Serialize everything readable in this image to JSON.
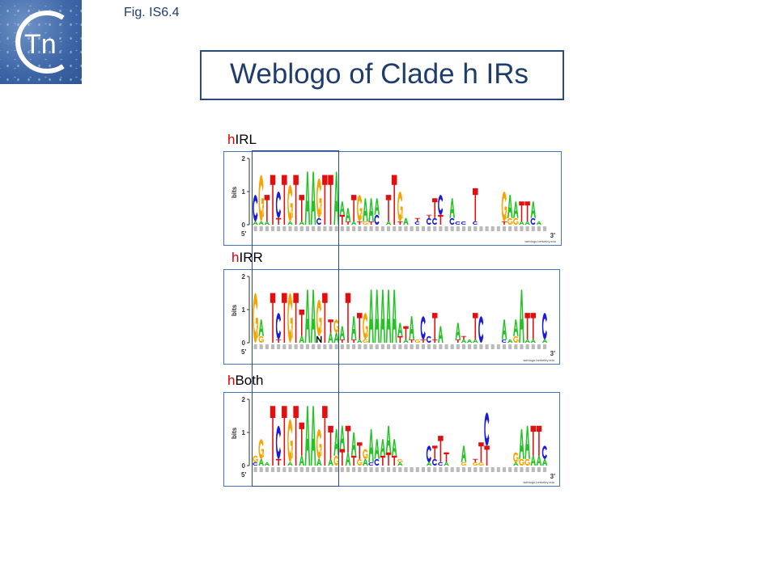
{
  "header": {
    "figure_label": "Fig. IS6.4",
    "title": "Weblogo of Clade h IRs",
    "logo_text": "Tn"
  },
  "colors": {
    "A": "#22c322",
    "C": "#1b1bd6",
    "G": "#f6a400",
    "T": "#e01010",
    "N": "#111111",
    "accent": "#e00000",
    "title": "#1f3d6b"
  },
  "axis": {
    "ylabel": "bits",
    "ticks": [
      "0",
      "1",
      "2"
    ],
    "five_prime": "5'",
    "three_prime": "3'",
    "credit": "weblogo.berkeley.edu",
    "ylim": [
      0,
      2
    ]
  },
  "logos": [
    {
      "prefix": "h",
      "name": "IRL",
      "columns": [
        "C0.8 A0.1",
        "G1.4 A0.1",
        "T0.8 A0.1",
        "T1.5",
        "C0.8 T0.2",
        "T1.5",
        "G1.1 A0.1",
        "T1.5",
        "T0.8 A0.1",
        "A1.6",
        "A1.6",
        "G1.2 C0.2",
        "T1.5",
        "T1.5",
        "A1.6",
        "A0.4 T0.3",
        "A0.4 T0.1",
        "T0.8 A0.1",
        "G0.8 T0.1",
        "A0.7 G0.1",
        "A0.7 T0.1",
        "A0.5 C0.3",
        "",
        "T0.8 A0.1",
        "T1.5",
        "G0.9 T0.1",
        "A0.2",
        "",
        "T0.1 C0.1",
        "",
        "T0.1 C0.2",
        "T0.6 C0.2",
        "C0.6 T0.3",
        "",
        "A0.6 C0.2",
        "C0.1",
        "C0.1",
        "",
        "T1.0 C0.1",
        "",
        "",
        "",
        "",
        "G0.9 T0.1",
        "A0.7 G0.2",
        "A0.5 G0.2",
        "T0.6 A0.1",
        "T0.6 A0.1",
        "A0.5 C0.2",
        "A0.1",
        ""
      ]
    },
    {
      "prefix": "h",
      "name": "IRR",
      "columns": [
        "G1.5",
        "A0.5 G0.2",
        "",
        "T1.5",
        "C0.8 T0.1",
        "T1.5",
        "G1.5",
        "T1.5",
        "T0.8 A0.2",
        "A1.6",
        "A1.6",
        "G1.1 N0.2",
        "T1.5",
        "T0.4 A0.3",
        "G0.4 A0.3",
        "A0.4 T0.1",
        "T1.5",
        "A0.7 T0.1",
        "T0.8 A0.1",
        "G0.8 G0.1",
        "A1.6",
        "A1.6",
        "A1.6",
        "A1.6",
        "A1.6",
        "A0.4 T0.2",
        "T0.4 A0.1",
        "A0.7 T0.1",
        "G0.1",
        "C0.7 T0.1",
        "C0.2",
        "T0.8 T0.1",
        "A0.5",
        "",
        "",
        "A0.5 T0.1",
        "T0.1 A0.1",
        "A0.1",
        "T0.8 A0.1",
        "C0.8",
        "",
        "",
        "",
        "A0.6 C0.1",
        "A0.1",
        "A0.5 G0.2",
        "A1.6",
        "T0.8 A0.1",
        "T0.8 A0.1",
        "",
        "C0.8 A0.1"
      ]
    },
    {
      "prefix": "h",
      "name": "Both",
      "columns": [
        "G0.2 C0.1",
        "G0.6 A0.2",
        "A0.1",
        "T1.8",
        "C1.0 T0.2",
        "T1.8",
        "G1.3 A0.1",
        "T1.8",
        "T1.0 A0.3",
        "A1.8",
        "A1.8",
        "G0.9 A0.2",
        "T1.8",
        "T1.0 A0.2",
        "A0.8 G0.3",
        "A0.7 T0.5",
        "T0.8 A0.4",
        "A0.7 T0.3",
        "T0.5 G0.2",
        "G0.3 A0.2",
        "A1.0 C0.1",
        "A0.6 C0.2",
        "A0.5 T0.3",
        "A0.8 T0.4",
        "A0.5 T0.3",
        "G0.1 A0.1",
        "",
        "",
        "",
        "",
        "C0.5 A0.1",
        "T0.4 C0.2",
        "T0.8 C0.1",
        "T0.3 A0.1",
        "",
        "",
        "A0.5 G0.1",
        "",
        "T0.1 G0.1",
        "T0.6 G0.1",
        "C1.0 T0.6",
        "",
        "",
        "",
        "",
        "G0.3 A0.1",
        "A0.9 G0.2",
        "A1.0 G0.2",
        "T0.9 A0.3",
        "T0.9 A0.3",
        "C0.4 A0.2"
      ]
    }
  ]
}
